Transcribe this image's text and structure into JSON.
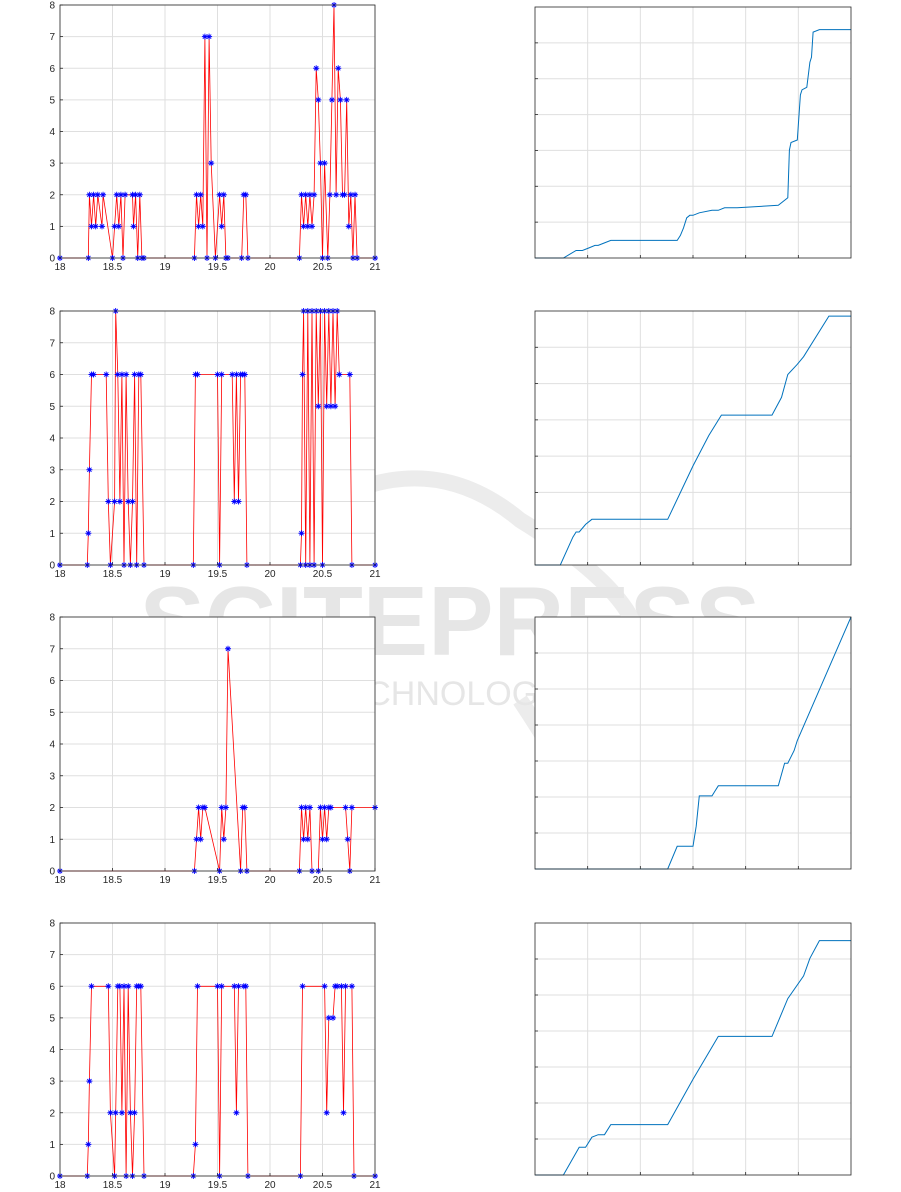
{
  "watermark": {
    "logo": "SCITEPRESS",
    "tagline": "SCIENCE AND TECHNOLOGY PUBLICATIONS",
    "color": "#e6e6e6"
  },
  "colors": {
    "state_line": "#ff0000",
    "state_marker": "#0000ff",
    "cumulative_line": "#0072bd",
    "grid": "#dfdfdf",
    "axes": "#262626"
  },
  "chart_data": [
    {
      "type": "line",
      "marker": "*",
      "xlim": [
        18,
        21
      ],
      "ylim": [
        0,
        8
      ],
      "xticks": [
        "18",
        "18.5",
        "19",
        "19.5",
        "20",
        "20.5",
        "21"
      ],
      "yticks": [
        "0",
        "1",
        "2",
        "3",
        "4",
        "5",
        "6",
        "7",
        "8"
      ],
      "grid": true,
      "x": [
        18.0,
        18.27,
        18.28,
        18.3,
        18.32,
        18.34,
        18.36,
        18.4,
        18.41,
        18.5,
        18.52,
        18.54,
        18.56,
        18.58,
        18.6,
        18.62,
        18.69,
        18.7,
        18.72,
        18.74,
        18.76,
        18.78,
        18.8,
        19.28,
        19.3,
        19.32,
        19.34,
        19.36,
        19.38,
        19.4,
        19.42,
        19.44,
        19.48,
        19.52,
        19.54,
        19.56,
        19.58,
        19.6,
        19.73,
        19.75,
        19.77,
        19.79,
        20.28,
        20.3,
        20.32,
        20.34,
        20.36,
        20.38,
        20.4,
        20.42,
        20.44,
        20.46,
        20.48,
        20.5,
        20.52,
        20.55,
        20.57,
        20.59,
        20.61,
        20.63,
        20.65,
        20.67,
        20.69,
        20.71,
        20.73,
        20.75,
        20.77,
        20.79,
        20.81,
        20.83,
        21.0
      ],
      "y": [
        0,
        0,
        2,
        1,
        2,
        1,
        2,
        1,
        2,
        0,
        1,
        2,
        1,
        2,
        0,
        2,
        2,
        1,
        2,
        0,
        2,
        0,
        0,
        0,
        2,
        1,
        2,
        1,
        7,
        0,
        7,
        3,
        0,
        2,
        1,
        2,
        0,
        0,
        0,
        2,
        2,
        0,
        0,
        2,
        1,
        2,
        1,
        2,
        1,
        2,
        6,
        5,
        3,
        0,
        3,
        0,
        2,
        5,
        8,
        2,
        6,
        5,
        2,
        2,
        5,
        1,
        2,
        0,
        2,
        0,
        0
      ]
    },
    {
      "type": "line",
      "xlim": [
        0,
        1
      ],
      "ylim": [
        0,
        1
      ],
      "xticks": [],
      "yticks": [],
      "grid": true,
      "x": [
        0.0,
        0.09,
        0.13,
        0.15,
        0.17,
        0.19,
        0.2,
        0.22,
        0.24,
        0.27,
        0.45,
        0.46,
        0.47,
        0.48,
        0.49,
        0.5,
        0.52,
        0.56,
        0.58,
        0.6,
        0.64,
        0.77,
        0.8,
        0.805,
        0.81,
        0.83,
        0.84,
        0.845,
        0.86,
        0.87,
        0.875,
        0.88,
        0.9,
        1.0
      ],
      "y": [
        0,
        0,
        0.03,
        0.03,
        0.04,
        0.05,
        0.05,
        0.06,
        0.07,
        0.07,
        0.07,
        0.09,
        0.12,
        0.16,
        0.17,
        0.17,
        0.18,
        0.19,
        0.19,
        0.2,
        0.2,
        0.21,
        0.24,
        0.43,
        0.46,
        0.47,
        0.65,
        0.67,
        0.68,
        0.78,
        0.8,
        0.9,
        0.91,
        0.91
      ]
    },
    {
      "type": "line",
      "marker": "*",
      "xlim": [
        18,
        21
      ],
      "ylim": [
        0,
        8
      ],
      "xticks": [
        "18",
        "18.5",
        "19",
        "19.5",
        "20",
        "20.5",
        "21"
      ],
      "yticks": [
        "0",
        "1",
        "2",
        "3",
        "4",
        "5",
        "6",
        "7",
        "8"
      ],
      "grid": true,
      "x": [
        18.0,
        18.26,
        18.27,
        18.28,
        18.3,
        18.32,
        18.44,
        18.46,
        18.48,
        18.52,
        18.53,
        18.55,
        18.57,
        18.59,
        18.61,
        18.63,
        18.65,
        18.67,
        18.69,
        18.71,
        18.73,
        18.75,
        18.77,
        18.8,
        19.27,
        19.29,
        19.31,
        19.5,
        19.52,
        19.54,
        19.64,
        19.66,
        19.68,
        19.7,
        19.72,
        19.74,
        19.76,
        19.78,
        20.29,
        20.3,
        20.31,
        20.32,
        20.34,
        20.36,
        20.38,
        20.4,
        20.42,
        20.44,
        20.46,
        20.48,
        20.5,
        20.52,
        20.54,
        20.56,
        20.58,
        20.6,
        20.62,
        20.64,
        20.66,
        20.76,
        20.78,
        21.0
      ],
      "y": [
        0,
        0,
        1,
        3,
        6,
        6,
        6,
        2,
        0,
        2,
        8,
        6,
        2,
        6,
        0,
        6,
        2,
        0,
        2,
        6,
        0,
        6,
        6,
        0,
        0,
        6,
        6,
        6,
        0,
        6,
        6,
        2,
        6,
        2,
        6,
        6,
        6,
        0,
        0,
        1,
        6,
        8,
        0,
        8,
        0,
        8,
        0,
        8,
        5,
        8,
        0,
        8,
        5,
        8,
        5,
        8,
        5,
        8,
        6,
        6,
        0,
        0
      ]
    },
    {
      "type": "line",
      "xlim": [
        0,
        1
      ],
      "ylim": [
        0,
        1
      ],
      "xticks": [],
      "yticks": [],
      "grid": true,
      "x": [
        0.0,
        0.08,
        0.12,
        0.13,
        0.14,
        0.16,
        0.18,
        0.2,
        0.42,
        0.5,
        0.55,
        0.59,
        0.75,
        0.78,
        0.8,
        0.83,
        0.85,
        0.93,
        1.0
      ],
      "y": [
        0,
        0,
        0.11,
        0.13,
        0.13,
        0.16,
        0.18,
        0.18,
        0.18,
        0.39,
        0.51,
        0.59,
        0.59,
        0.66,
        0.75,
        0.79,
        0.82,
        0.98,
        0.98
      ]
    },
    {
      "type": "line",
      "marker": "*",
      "xlim": [
        18,
        21
      ],
      "ylim": [
        0,
        8
      ],
      "xticks": [
        "18",
        "18.5",
        "19",
        "19.5",
        "20",
        "20.5",
        "21"
      ],
      "yticks": [
        "0",
        "1",
        "2",
        "3",
        "4",
        "5",
        "6",
        "7",
        "8"
      ],
      "grid": true,
      "x": [
        18.0,
        19.28,
        19.3,
        19.32,
        19.34,
        19.36,
        19.38,
        19.52,
        19.54,
        19.56,
        19.58,
        19.6,
        19.72,
        19.74,
        19.76,
        19.78,
        20.28,
        20.3,
        20.32,
        20.34,
        20.36,
        20.38,
        20.4,
        20.46,
        20.48,
        20.5,
        20.52,
        20.54,
        20.56,
        20.58,
        20.72,
        20.74,
        20.76,
        20.78,
        21.0
      ],
      "y": [
        0,
        0,
        1,
        2,
        1,
        2,
        2,
        0,
        2,
        1,
        2,
        7,
        0,
        2,
        2,
        0,
        0,
        2,
        1,
        2,
        1,
        2,
        0,
        0,
        2,
        1,
        2,
        1,
        2,
        2,
        2,
        1,
        0,
        2,
        2
      ]
    },
    {
      "type": "line",
      "xlim": [
        0,
        1
      ],
      "ylim": [
        0,
        1
      ],
      "xticks": [],
      "yticks": [],
      "grid": true,
      "x": [
        0.0,
        0.42,
        0.45,
        0.5,
        0.51,
        0.52,
        0.56,
        0.57,
        0.58,
        0.77,
        0.79,
        0.8,
        0.82,
        0.83,
        1.0
      ],
      "y": [
        0,
        0,
        0.09,
        0.09,
        0.17,
        0.29,
        0.29,
        0.31,
        0.33,
        0.33,
        0.42,
        0.42,
        0.47,
        0.51,
        1.0
      ]
    },
    {
      "type": "line",
      "marker": "*",
      "xlim": [
        18,
        21
      ],
      "ylim": [
        0,
        8
      ],
      "xticks": [
        "18",
        "18.5",
        "19",
        "19.5",
        "20",
        "20.5",
        "21"
      ],
      "yticks": [
        "0",
        "1",
        "2",
        "3",
        "4",
        "5",
        "6",
        "7",
        "8"
      ],
      "grid": true,
      "x": [
        18.0,
        18.26,
        18.27,
        18.28,
        18.3,
        18.46,
        18.48,
        18.52,
        18.53,
        18.55,
        18.57,
        18.59,
        18.61,
        18.63,
        18.65,
        18.67,
        18.69,
        18.71,
        18.73,
        18.75,
        18.77,
        18.8,
        19.27,
        19.29,
        19.31,
        19.5,
        19.52,
        19.54,
        19.66,
        19.68,
        19.7,
        19.75,
        19.77,
        19.79,
        20.29,
        20.31,
        20.52,
        20.54,
        20.56,
        20.6,
        20.62,
        20.64,
        20.68,
        20.7,
        20.72,
        20.78,
        20.8,
        21.0
      ],
      "y": [
        0,
        0,
        1,
        3,
        6,
        6,
        2,
        0,
        2,
        6,
        6,
        2,
        6,
        0,
        6,
        2,
        0,
        2,
        6,
        6,
        6,
        0,
        0,
        1,
        6,
        6,
        0,
        6,
        6,
        2,
        6,
        6,
        6,
        0,
        0,
        6,
        6,
        2,
        5,
        5,
        6,
        6,
        6,
        2,
        6,
        6,
        0,
        0
      ]
    },
    {
      "type": "line",
      "xlim": [
        0,
        1
      ],
      "ylim": [
        0,
        1
      ],
      "xticks": [],
      "yticks": [],
      "grid": true,
      "x": [
        0.0,
        0.09,
        0.14,
        0.16,
        0.18,
        0.2,
        0.22,
        0.24,
        0.42,
        0.5,
        0.58,
        0.6,
        0.75,
        0.8,
        0.85,
        0.87,
        0.9,
        0.93,
        1.0
      ],
      "y": [
        0,
        0,
        0.11,
        0.11,
        0.15,
        0.16,
        0.16,
        0.2,
        0.2,
        0.38,
        0.55,
        0.55,
        0.55,
        0.7,
        0.79,
        0.86,
        0.93,
        0.93,
        0.93
      ]
    }
  ]
}
